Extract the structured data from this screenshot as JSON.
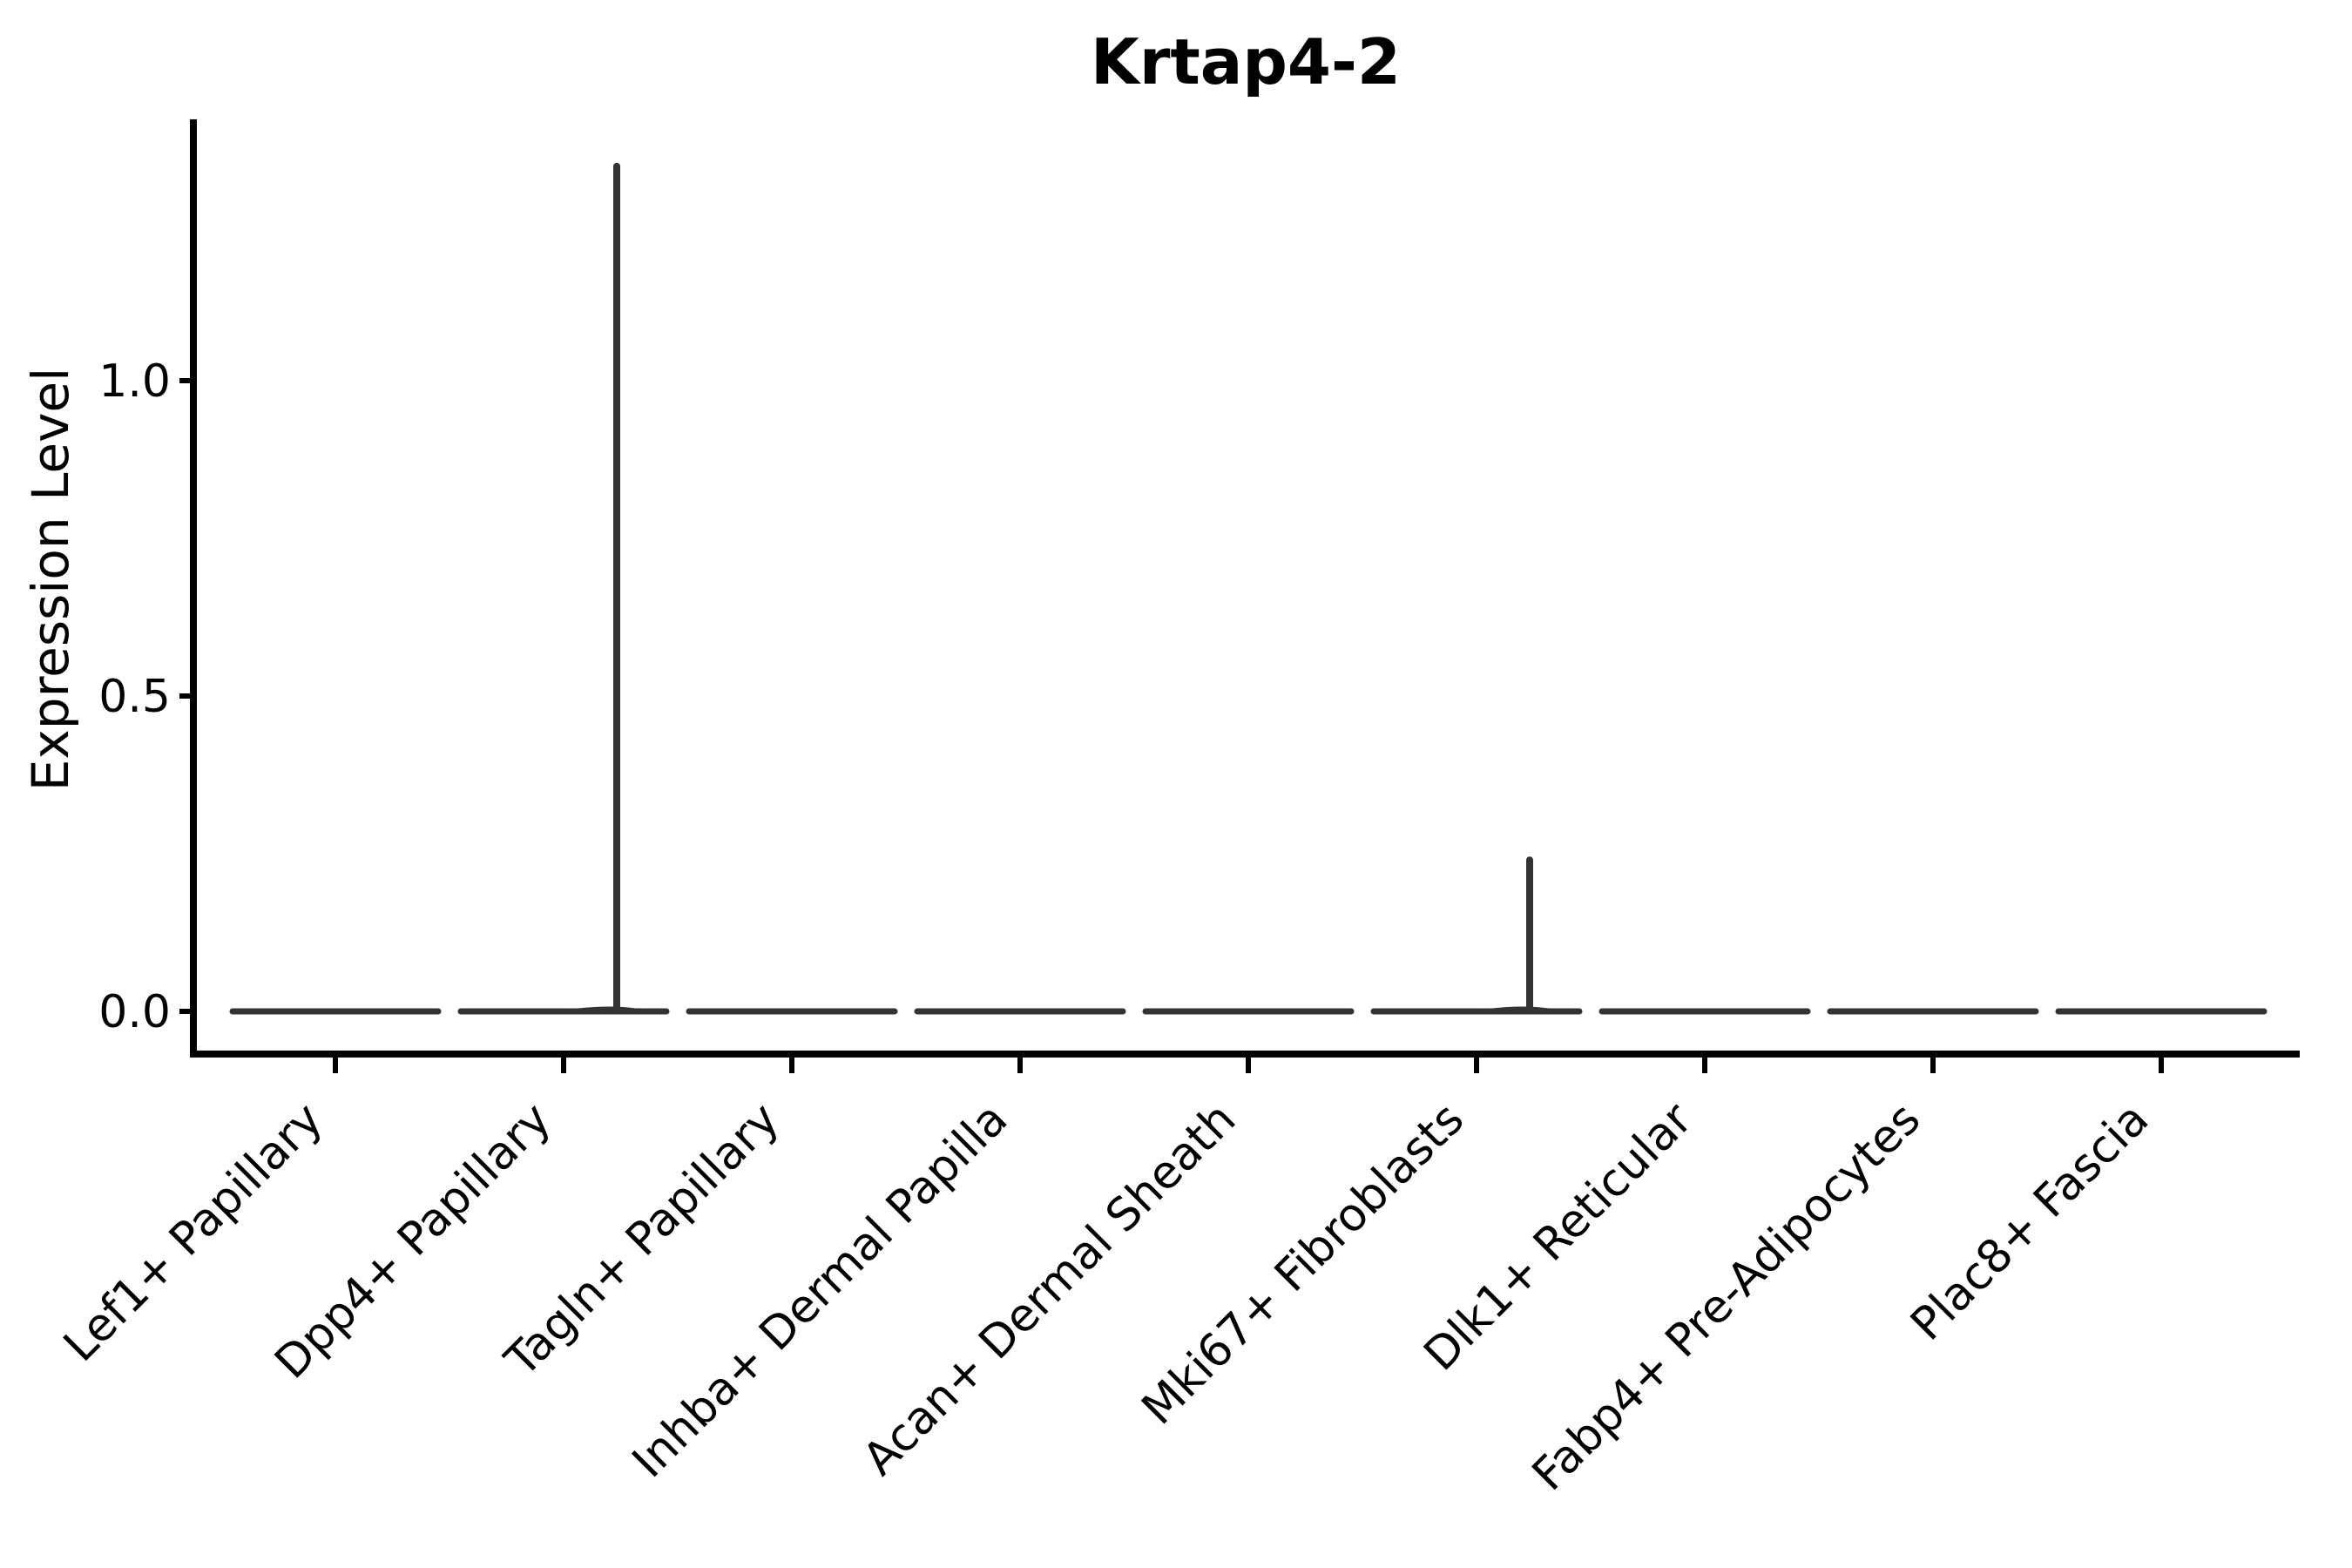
{
  "figure": {
    "background_color": "#ffffff",
    "text_color": "#000000",
    "axis_color": "#000000",
    "violin_color": "#333333"
  },
  "chart_data": {
    "type": "violin",
    "title": "Krtap4-2",
    "xlabel": "",
    "ylabel": "Expression Level",
    "legend": "none",
    "grid": false,
    "categories": [
      "Lef1+ Papillary",
      "Dpp4+ Papillary",
      "Tagln+ Papillary",
      "Inhba+ Dermal Papilla",
      "Acan+ Dermal Sheath",
      "Mki67+ Fibroblasts",
      "Dlk1+ Reticular",
      "Fabp4+ Pre-Adipocytes",
      "Plac8+ Fascia"
    ],
    "y_ticks": [
      0.0,
      0.5,
      1.0
    ],
    "y_tick_labels": [
      "0.0",
      "0.5",
      "1.0"
    ],
    "ylim": [
      -0.07,
      1.41
    ],
    "series": [
      {
        "name": "Lef1+ Papillary",
        "baseline_value": 0,
        "max_value": 0
      },
      {
        "name": "Dpp4+ Papillary",
        "baseline_value": 0,
        "max_value": 1.34
      },
      {
        "name": "Tagln+ Papillary",
        "baseline_value": 0,
        "max_value": 0
      },
      {
        "name": "Inhba+ Dermal Papilla",
        "baseline_value": 0,
        "max_value": 0
      },
      {
        "name": "Acan+ Dermal Sheath",
        "baseline_value": 0,
        "max_value": 0
      },
      {
        "name": "Mki67+ Fibroblasts",
        "baseline_value": 0,
        "max_value": 0.24
      },
      {
        "name": "Dlk1+ Reticular",
        "baseline_value": 0,
        "max_value": 0
      },
      {
        "name": "Fabp4+ Pre-Adipocytes",
        "baseline_value": 0,
        "max_value": 0
      },
      {
        "name": "Plac8+ Fascia",
        "baseline_value": 0,
        "max_value": 0
      }
    ]
  }
}
